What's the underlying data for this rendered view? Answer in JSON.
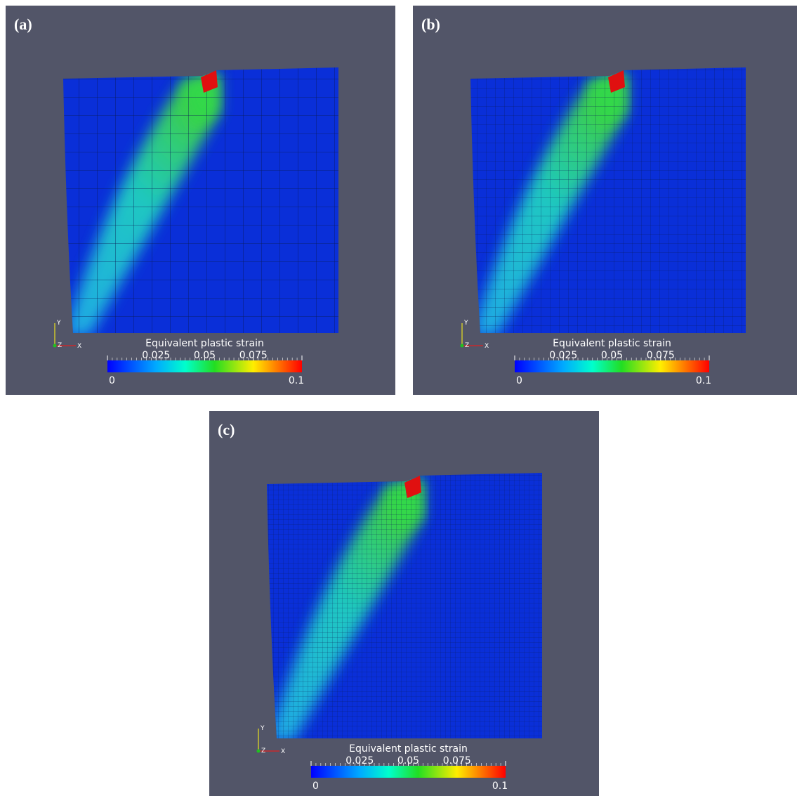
{
  "panels": [
    {
      "label": "(a)",
      "colorbar": {
        "title": "Equivalent plastic strain",
        "range": [
          0,
          0.1
        ],
        "ticks": [
          0.025,
          0.05,
          0.075
        ]
      },
      "axes": {
        "x": "X",
        "y": "Y",
        "z": "Z"
      }
    },
    {
      "label": "(b)",
      "colorbar": {
        "title": "Equivalent plastic strain",
        "range": [
          0,
          0.1
        ],
        "ticks": [
          0.025,
          0.05,
          0.075
        ]
      },
      "axes": {
        "x": "X",
        "y": "Y",
        "z": "Z"
      }
    },
    {
      "label": "(c)",
      "colorbar": {
        "title": "Equivalent plastic strain",
        "range": [
          0,
          0.1
        ],
        "ticks": [
          0.025,
          0.05,
          0.075
        ]
      },
      "axes": {
        "x": "X",
        "y": "Y",
        "z": "Z"
      }
    }
  ]
}
